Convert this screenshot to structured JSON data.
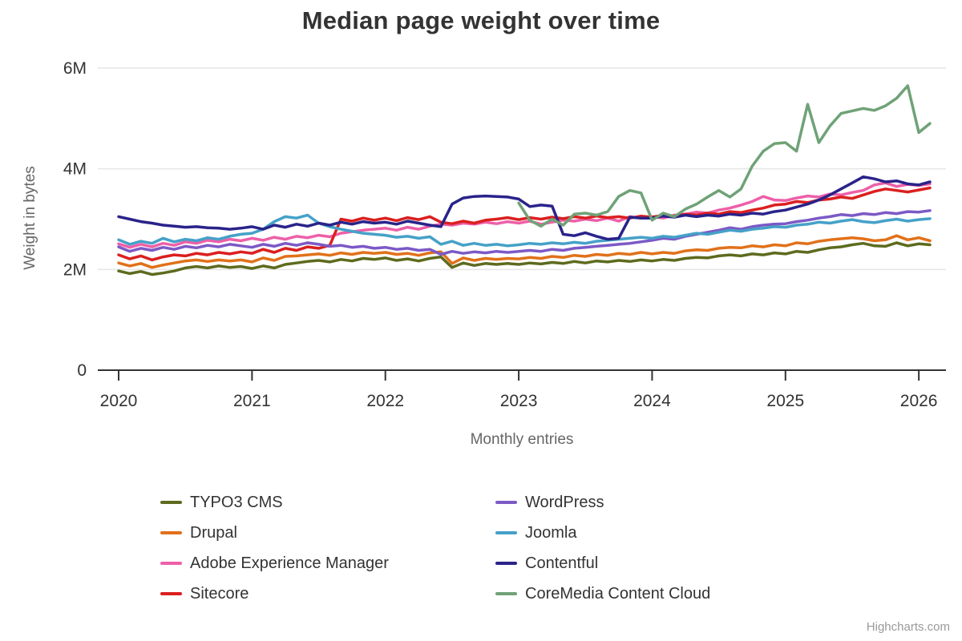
{
  "title": "Median page weight over time",
  "credits": "Highcharts.com",
  "y_axis": {
    "title": "Weight in bytes",
    "tick_labels": [
      "0",
      "2M",
      "4M",
      "6M"
    ],
    "tick_values": [
      0,
      2,
      4,
      6
    ],
    "max": 6
  },
  "x_axis": {
    "title": "Monthly entries",
    "tick_labels": [
      "2020",
      "2021",
      "2022",
      "2023",
      "2024",
      "2025",
      "2026"
    ],
    "tick_indices": [
      0,
      12,
      24,
      36,
      48,
      60,
      72
    ]
  },
  "chart_data": {
    "type": "line",
    "x_start": "2020-01",
    "x_interval": "1 month",
    "x_points": 74,
    "unit": "millions of bytes",
    "ylim": [
      0,
      6000000
    ],
    "grid": "horizontal",
    "legend_position": "bottom",
    "series": [
      {
        "name": "TYPO3 CMS",
        "color": "#5d6b1e",
        "values": [
          1.97,
          1.92,
          1.96,
          1.9,
          1.93,
          1.97,
          2.03,
          2.06,
          2.03,
          2.07,
          2.04,
          2.06,
          2.02,
          2.07,
          2.03,
          2.1,
          2.13,
          2.16,
          2.18,
          2.15,
          2.2,
          2.17,
          2.22,
          2.2,
          2.23,
          2.18,
          2.21,
          2.17,
          2.22,
          2.25,
          2.04,
          2.13,
          2.08,
          2.12,
          2.1,
          2.12,
          2.1,
          2.13,
          2.11,
          2.14,
          2.12,
          2.16,
          2.13,
          2.17,
          2.15,
          2.18,
          2.16,
          2.19,
          2.17,
          2.2,
          2.18,
          2.22,
          2.24,
          2.23,
          2.27,
          2.29,
          2.27,
          2.31,
          2.29,
          2.33,
          2.31,
          2.36,
          2.34,
          2.39,
          2.43,
          2.45,
          2.49,
          2.52,
          2.47,
          2.46,
          2.53,
          2.47,
          2.51,
          2.49
        ]
      },
      {
        "name": "Drupal",
        "color": "#e1711a",
        "values": [
          2.13,
          2.07,
          2.12,
          2.04,
          2.09,
          2.13,
          2.17,
          2.19,
          2.16,
          2.19,
          2.17,
          2.19,
          2.15,
          2.23,
          2.18,
          2.26,
          2.27,
          2.29,
          2.31,
          2.28,
          2.33,
          2.3,
          2.34,
          2.32,
          2.34,
          2.3,
          2.32,
          2.28,
          2.33,
          2.35,
          2.12,
          2.23,
          2.18,
          2.22,
          2.2,
          2.22,
          2.21,
          2.24,
          2.22,
          2.26,
          2.24,
          2.28,
          2.26,
          2.3,
          2.28,
          2.32,
          2.3,
          2.34,
          2.31,
          2.34,
          2.32,
          2.37,
          2.39,
          2.38,
          2.42,
          2.44,
          2.43,
          2.47,
          2.45,
          2.49,
          2.47,
          2.53,
          2.51,
          2.56,
          2.59,
          2.61,
          2.63,
          2.61,
          2.57,
          2.59,
          2.67,
          2.59,
          2.63,
          2.57
        ]
      },
      {
        "name": "Adobe Experience Manager",
        "color": "#ee5fa8",
        "values": [
          2.51,
          2.44,
          2.5,
          2.45,
          2.52,
          2.48,
          2.55,
          2.52,
          2.58,
          2.55,
          2.6,
          2.57,
          2.62,
          2.58,
          2.64,
          2.6,
          2.66,
          2.63,
          2.68,
          2.65,
          2.72,
          2.75,
          2.78,
          2.8,
          2.82,
          2.78,
          2.84,
          2.8,
          2.86,
          2.9,
          2.88,
          2.92,
          2.9,
          2.94,
          2.91,
          2.95,
          2.92,
          2.96,
          2.9,
          2.94,
          2.98,
          2.96,
          3.0,
          2.97,
          3.02,
          2.96,
          3.05,
          3.02,
          3.05,
          3.02,
          3.08,
          3.1,
          3.14,
          3.12,
          3.18,
          3.22,
          3.28,
          3.35,
          3.45,
          3.38,
          3.37,
          3.42,
          3.46,
          3.44,
          3.5,
          3.48,
          3.53,
          3.57,
          3.68,
          3.72,
          3.65,
          3.69,
          3.67,
          3.7
        ]
      },
      {
        "name": "Sitecore",
        "color": "#db1f1f",
        "values": [
          2.29,
          2.21,
          2.27,
          2.19,
          2.25,
          2.29,
          2.27,
          2.32,
          2.29,
          2.34,
          2.31,
          2.35,
          2.32,
          2.4,
          2.34,
          2.42,
          2.38,
          2.45,
          2.42,
          2.48,
          3.0,
          2.96,
          3.02,
          2.98,
          3.02,
          2.97,
          3.03,
          2.99,
          3.05,
          2.94,
          2.91,
          2.96,
          2.92,
          2.98,
          3.0,
          3.03,
          2.99,
          3.03,
          3.0,
          3.04,
          3.01,
          3.05,
          3.02,
          3.06,
          3.03,
          3.05,
          3.02,
          3.06,
          3.04,
          3.08,
          3.06,
          3.1,
          3.08,
          3.12,
          3.1,
          3.15,
          3.13,
          3.18,
          3.22,
          3.28,
          3.3,
          3.35,
          3.33,
          3.38,
          3.4,
          3.44,
          3.41,
          3.48,
          3.55,
          3.6,
          3.57,
          3.54,
          3.58,
          3.62
        ]
      },
      {
        "name": "WordPress",
        "color": "#7c59c6",
        "values": [
          2.45,
          2.36,
          2.42,
          2.38,
          2.44,
          2.4,
          2.46,
          2.43,
          2.48,
          2.45,
          2.5,
          2.47,
          2.44,
          2.5,
          2.46,
          2.52,
          2.48,
          2.53,
          2.5,
          2.46,
          2.48,
          2.44,
          2.46,
          2.42,
          2.44,
          2.4,
          2.42,
          2.38,
          2.4,
          2.3,
          2.36,
          2.32,
          2.35,
          2.33,
          2.36,
          2.34,
          2.36,
          2.38,
          2.36,
          2.4,
          2.38,
          2.42,
          2.44,
          2.46,
          2.48,
          2.5,
          2.52,
          2.55,
          2.58,
          2.62,
          2.6,
          2.66,
          2.7,
          2.74,
          2.78,
          2.83,
          2.8,
          2.85,
          2.88,
          2.9,
          2.91,
          2.95,
          2.98,
          3.02,
          3.05,
          3.09,
          3.07,
          3.11,
          3.09,
          3.13,
          3.11,
          3.15,
          3.14,
          3.17
        ]
      },
      {
        "name": "Joomla",
        "color": "#45a1c8",
        "values": [
          2.59,
          2.5,
          2.56,
          2.52,
          2.62,
          2.55,
          2.6,
          2.57,
          2.63,
          2.6,
          2.66,
          2.7,
          2.72,
          2.8,
          2.95,
          3.05,
          3.02,
          3.08,
          2.92,
          2.85,
          2.8,
          2.76,
          2.72,
          2.7,
          2.68,
          2.64,
          2.66,
          2.62,
          2.65,
          2.5,
          2.56,
          2.48,
          2.52,
          2.48,
          2.5,
          2.47,
          2.49,
          2.52,
          2.5,
          2.53,
          2.51,
          2.54,
          2.52,
          2.56,
          2.58,
          2.6,
          2.62,
          2.64,
          2.62,
          2.66,
          2.64,
          2.68,
          2.72,
          2.7,
          2.74,
          2.78,
          2.76,
          2.8,
          2.82,
          2.85,
          2.84,
          2.88,
          2.9,
          2.94,
          2.92,
          2.96,
          2.99,
          2.95,
          2.93,
          2.97,
          3.0,
          2.96,
          2.99,
          3.01
        ]
      },
      {
        "name": "Contentful",
        "color": "#29238a",
        "values": [
          3.05,
          3.0,
          2.95,
          2.92,
          2.88,
          2.86,
          2.84,
          2.85,
          2.83,
          2.82,
          2.8,
          2.82,
          2.85,
          2.8,
          2.88,
          2.84,
          2.9,
          2.86,
          2.92,
          2.88,
          2.94,
          2.9,
          2.95,
          2.92,
          2.94,
          2.9,
          2.96,
          2.92,
          2.88,
          2.85,
          3.3,
          3.42,
          3.45,
          3.46,
          3.45,
          3.44,
          3.4,
          3.25,
          3.28,
          3.26,
          2.7,
          2.67,
          2.73,
          2.66,
          2.6,
          2.62,
          3.04,
          3.02,
          3.02,
          3.06,
          3.04,
          3.08,
          3.05,
          3.08,
          3.06,
          3.1,
          3.08,
          3.12,
          3.1,
          3.15,
          3.18,
          3.24,
          3.3,
          3.38,
          3.48,
          3.6,
          3.72,
          3.84,
          3.8,
          3.74,
          3.76,
          3.7,
          3.68,
          3.74
        ]
      },
      {
        "name": "CoreMedia Content Cloud",
        "color": "#6fa277",
        "values": [
          null,
          null,
          null,
          null,
          null,
          null,
          null,
          null,
          null,
          null,
          null,
          null,
          null,
          null,
          null,
          null,
          null,
          null,
          null,
          null,
          null,
          null,
          null,
          null,
          null,
          null,
          null,
          null,
          null,
          null,
          null,
          null,
          null,
          null,
          null,
          null,
          3.32,
          2.98,
          2.86,
          3.0,
          2.88,
          3.1,
          3.12,
          3.08,
          3.15,
          3.45,
          3.57,
          3.52,
          2.98,
          3.12,
          3.05,
          3.2,
          3.3,
          3.44,
          3.57,
          3.44,
          3.6,
          4.05,
          4.35,
          4.5,
          4.52,
          4.35,
          5.28,
          4.52,
          4.85,
          5.1,
          5.15,
          5.2,
          5.16,
          5.25,
          5.4,
          5.65,
          4.72,
          4.9
        ]
      }
    ]
  }
}
